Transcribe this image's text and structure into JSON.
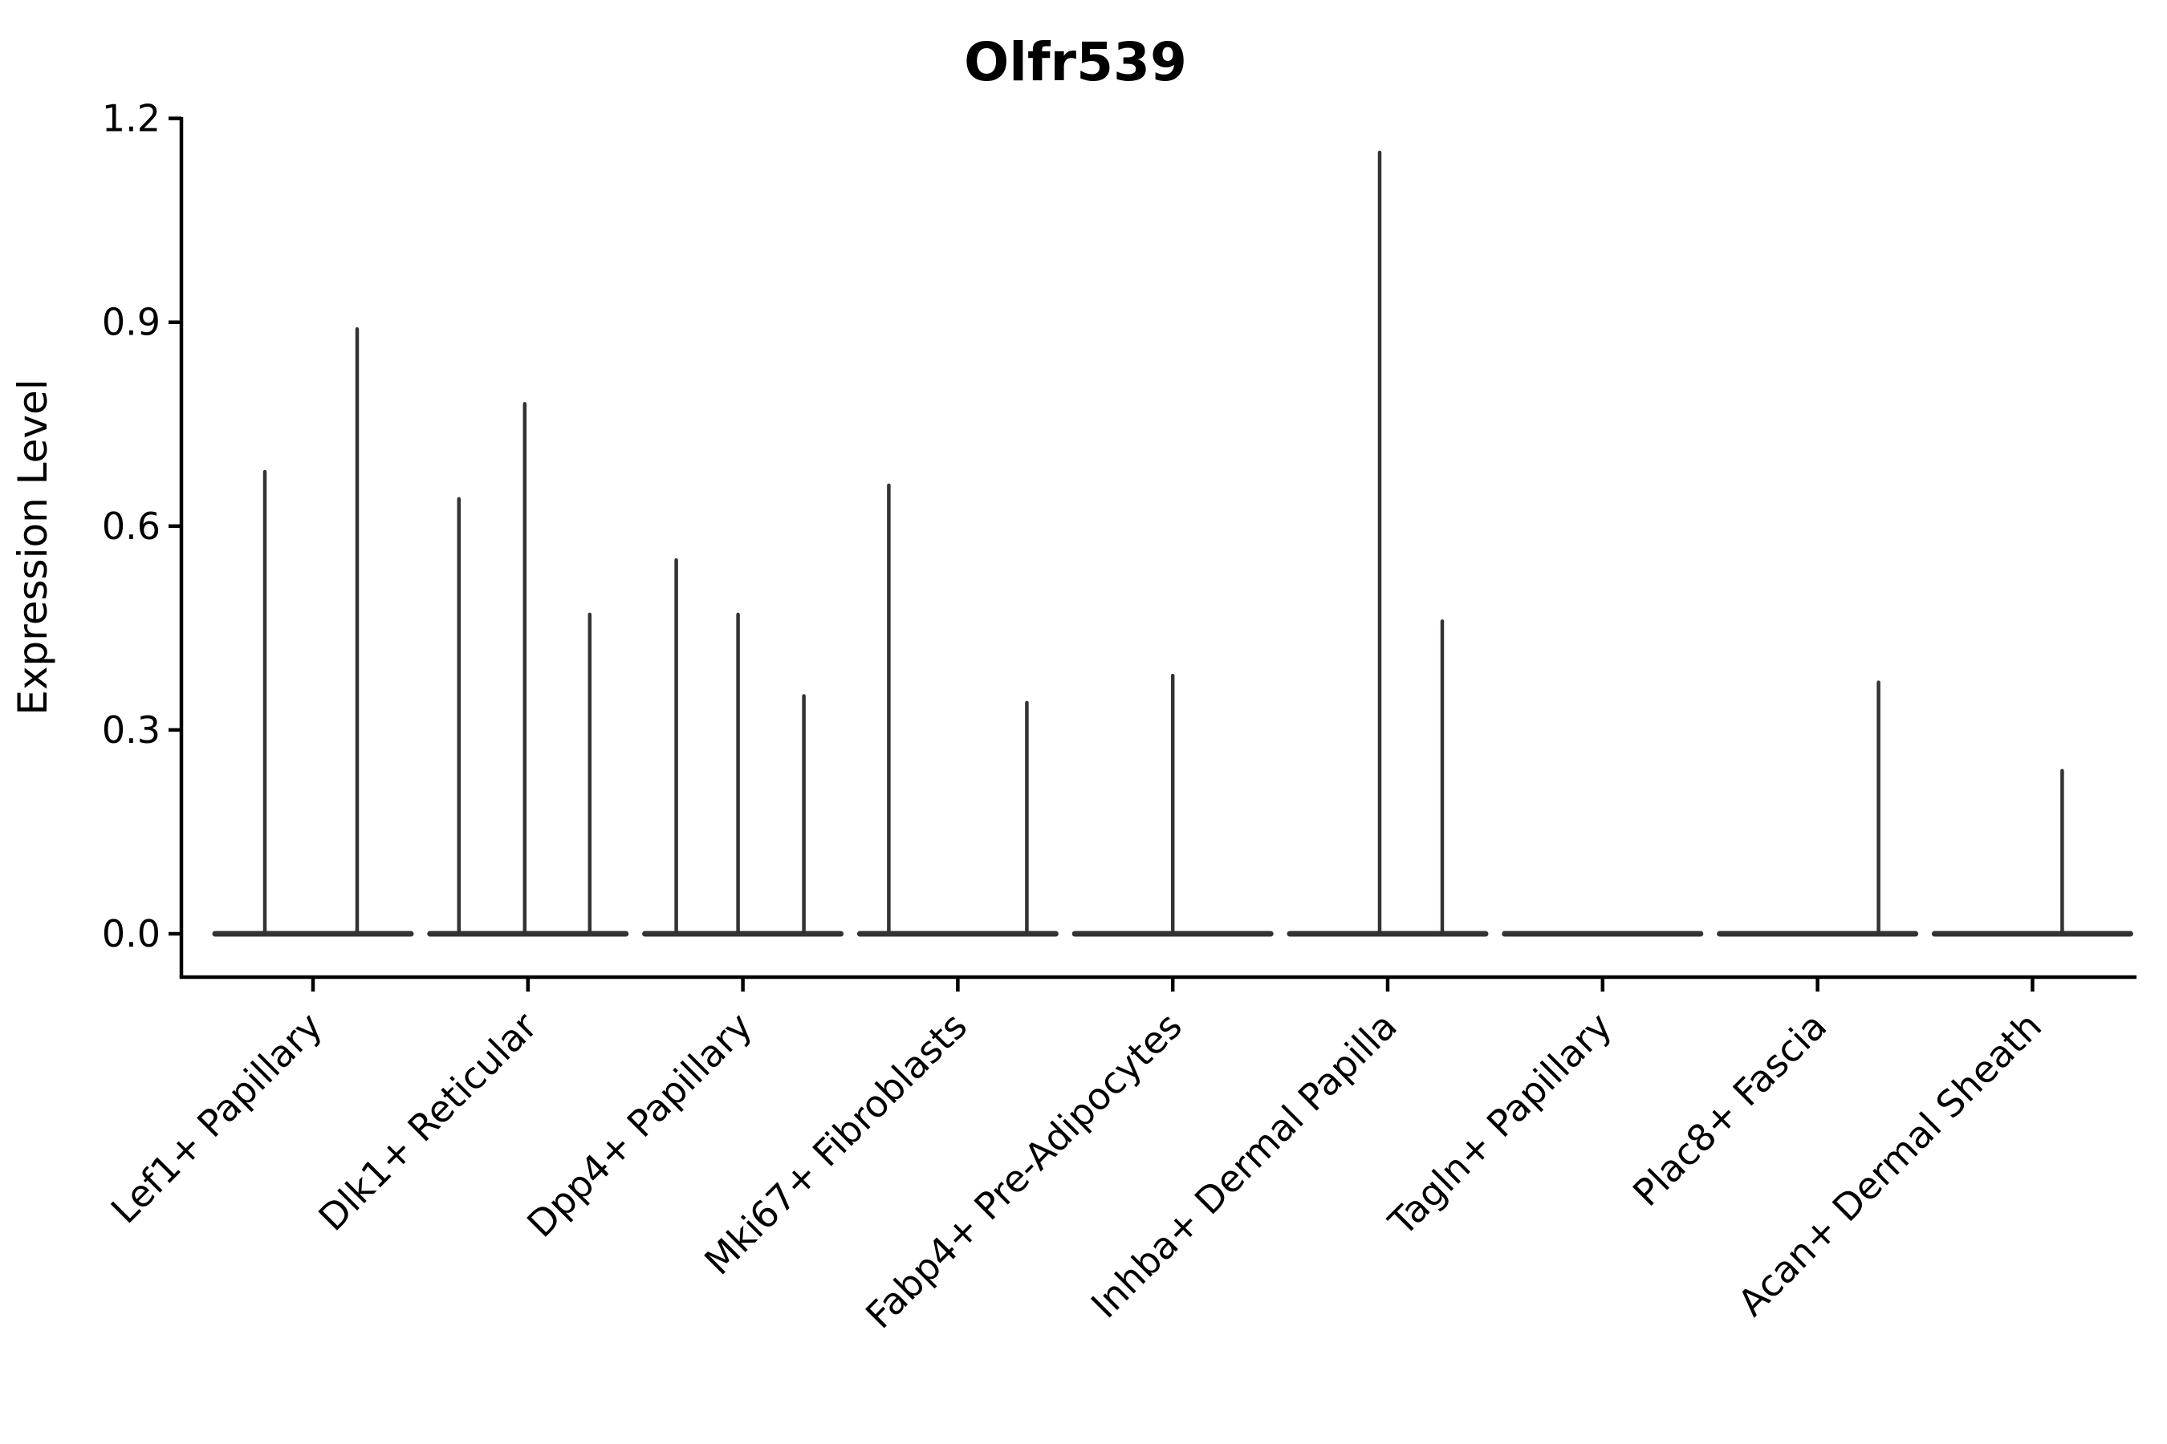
{
  "figure": {
    "background": "#ffffff"
  },
  "chart_data": {
    "type": "violin",
    "title": "Olfr539",
    "ylabel": "Expression Level",
    "xlabel": "",
    "ylim": [
      0.0,
      1.2
    ],
    "y_ticks": [
      0.0,
      0.3,
      0.6,
      0.9,
      1.2
    ],
    "y_tick_labels": [
      "0.0",
      "0.3",
      "0.6",
      "0.9",
      "1.2"
    ],
    "grid": false,
    "legend": "none",
    "violin_color": "#333333",
    "spine_color": "#000000",
    "categories": [
      "Lef1+ Papillary",
      "Dlk1+ Reticular",
      "Dpp4+ Papillary",
      "Mki67+ Fibroblasts",
      "Fabp4+ Pre-Adipocytes",
      "Inhba+ Dermal Papilla",
      "Tagln+ Papillary",
      "Plac8+ Fascia",
      "Acan+ Dermal Sheath"
    ],
    "series": [
      {
        "category": "Lef1+ Papillary",
        "spikes": [
          {
            "offset": -60,
            "value": 0.68
          },
          {
            "offset": 55,
            "value": 0.89
          }
        ]
      },
      {
        "category": "Dlk1+ Reticular",
        "spikes": [
          {
            "offset": -86,
            "value": 0.64
          },
          {
            "offset": -4,
            "value": 0.78
          },
          {
            "offset": 77,
            "value": 0.47
          }
        ]
      },
      {
        "category": "Dpp4+ Papillary",
        "spikes": [
          {
            "offset": -83,
            "value": 0.55
          },
          {
            "offset": -6,
            "value": 0.47
          },
          {
            "offset": 76,
            "value": 0.35
          }
        ]
      },
      {
        "category": "Mki67+ Fibroblasts",
        "spikes": [
          {
            "offset": -86,
            "value": 0.66
          },
          {
            "offset": 86,
            "value": 0.34
          }
        ]
      },
      {
        "category": "Fabp4+ Pre-Adipocytes",
        "spikes": [
          {
            "offset": 0,
            "value": 0.38
          }
        ]
      },
      {
        "category": "Inhba+ Dermal Papilla",
        "spikes": [
          {
            "offset": -10,
            "value": 1.15
          },
          {
            "offset": 68,
            "value": 0.46
          }
        ]
      },
      {
        "category": "Tagln+ Papillary",
        "spikes": []
      },
      {
        "category": "Plac8+ Fascia",
        "spikes": [
          {
            "offset": 76,
            "value": 0.37
          }
        ]
      },
      {
        "category": "Acan+ Dermal Sheath",
        "spikes": [
          {
            "offset": 37,
            "value": 0.24
          }
        ]
      }
    ]
  }
}
